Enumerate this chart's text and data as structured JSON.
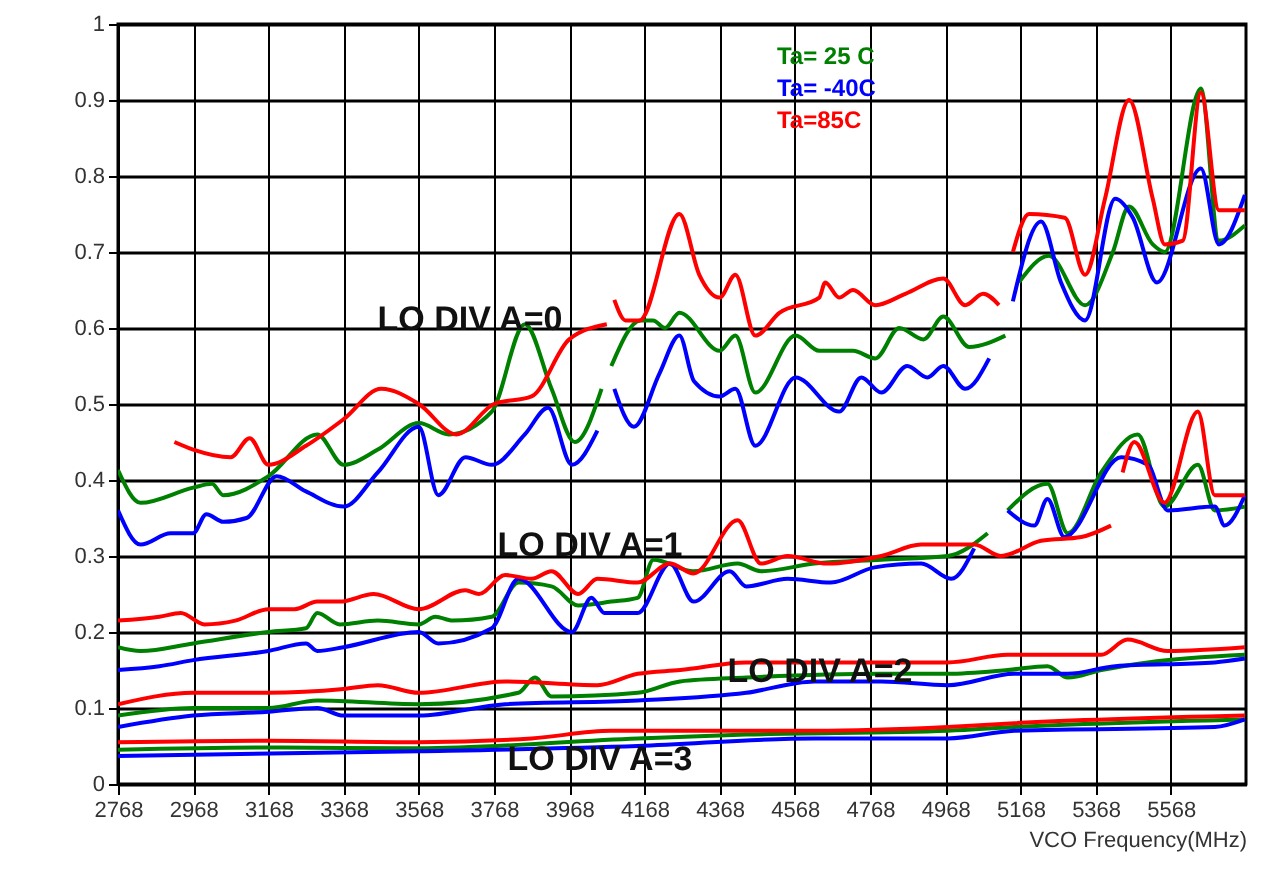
{
  "chart_data": {
    "type": "line",
    "xlabel": "VCO Frequency(MHz)",
    "xlim": [
      2768,
      5768
    ],
    "xticks": [
      2768,
      2968,
      3168,
      3368,
      3568,
      3768,
      3968,
      4168,
      4368,
      4568,
      4768,
      4968,
      5168,
      5368,
      5568
    ],
    "ylim": [
      0,
      1
    ],
    "yticks": [
      0,
      0.1,
      0.2,
      0.3,
      0.4,
      0.5,
      0.6,
      0.7,
      0.8,
      0.9,
      1
    ],
    "grid": true,
    "legend": "top",
    "marker": "none",
    "line_style": "solid",
    "annotations": [
      "LO DIV A=0",
      "LO DIV A=1",
      "LO DIV A=2",
      "LO DIV A=3"
    ],
    "series": [
      {
        "name": "Ta= 25 C",
        "color": "#008000",
        "x": [
          2768,
          2828,
          2968,
          3018,
          3048,
          3168,
          3298,
          3368,
          3459,
          3568,
          3648,
          3762,
          3850,
          3921,
          3983,
          4054,
          4070,
          4080,
          4158,
          4191,
          4223,
          4261,
          4368,
          4410,
          4463,
          4570,
          4633,
          4723,
          4782,
          4846,
          4910,
          4963,
          5032,
          5128,
          5140,
          5164,
          5244,
          5340,
          5414,
          5457,
          5520,
          5552,
          5648,
          5696,
          5765
        ],
        "values": [
          0.413,
          0.37,
          0.39,
          0.395,
          0.38,
          0.405,
          0.46,
          0.42,
          0.44,
          0.475,
          0.46,
          0.49,
          0.605,
          0.52,
          0.45,
          0.52,
          null,
          0.55,
          0.61,
          0.61,
          0.6,
          0.62,
          0.57,
          0.59,
          0.515,
          0.59,
          0.57,
          0.57,
          0.56,
          0.6,
          0.585,
          0.615,
          0.575,
          0.59,
          null,
          0.66,
          0.695,
          0.63,
          0.7,
          0.76,
          0.71,
          0.7,
          0.915,
          0.715,
          0.735
        ]
      },
      {
        "name": "Ta= -40C",
        "color": "#0000ff",
        "x": [
          2768,
          2828,
          2908,
          2968,
          3003,
          3048,
          3110,
          3190,
          3268,
          3368,
          3459,
          3568,
          3620,
          3692,
          3762,
          3850,
          3912,
          3975,
          4043,
          4070,
          4088,
          4140,
          4208,
          4261,
          4300,
          4368,
          4410,
          4463,
          4570,
          4686,
          4745,
          4798,
          4867,
          4921,
          4963,
          5021,
          5085,
          5130,
          5148,
          5223,
          5276,
          5340,
          5420,
          5467,
          5531,
          5648,
          5696,
          5765
        ],
        "values": [
          0.36,
          0.315,
          0.33,
          0.33,
          0.355,
          0.345,
          0.35,
          0.405,
          0.385,
          0.365,
          0.41,
          0.47,
          0.38,
          0.43,
          0.42,
          0.46,
          0.495,
          0.42,
          0.465,
          null,
          0.52,
          0.47,
          0.54,
          0.59,
          0.53,
          0.51,
          0.52,
          0.445,
          0.535,
          0.49,
          0.535,
          0.515,
          0.55,
          0.535,
          0.55,
          0.52,
          0.56,
          null,
          0.635,
          0.74,
          0.66,
          0.61,
          0.77,
          0.745,
          0.66,
          0.81,
          0.71,
          0.775
        ]
      },
      {
        "name": "Ta=85C",
        "color": "#ff0000",
        "x": [
          2918,
          2968,
          3068,
          3118,
          3168,
          3268,
          3368,
          3468,
          3568,
          3668,
          3768,
          3868,
          3968,
          4068,
          4078,
          4088,
          4118,
          4155,
          4261,
          4314,
          4368,
          4410,
          4463,
          4527,
          4633,
          4649,
          4686,
          4723,
          4782,
          4862,
          4963,
          5021,
          5069,
          5111,
          5130,
          5148,
          5191,
          5286,
          5340,
          5393,
          5457,
          5520,
          5552,
          5600,
          5648,
          5696,
          5765
        ],
        "values": [
          0.45,
          0.44,
          0.43,
          0.455,
          0.42,
          0.445,
          0.48,
          0.52,
          0.5,
          0.46,
          0.5,
          0.51,
          0.585,
          0.605,
          null,
          0.637,
          0.61,
          0.61,
          0.75,
          0.67,
          0.64,
          0.67,
          0.59,
          0.62,
          0.64,
          0.66,
          0.64,
          0.65,
          0.63,
          0.645,
          0.665,
          0.63,
          0.645,
          0.63,
          null,
          0.7,
          0.75,
          0.745,
          0.67,
          0.77,
          0.9,
          0.77,
          0.71,
          0.715,
          0.91,
          0.755,
          0.755
        ]
      },
      {
        "color": "#008000",
        "x": [
          2768,
          2828,
          2968,
          3168,
          3268,
          3298,
          3358,
          3459,
          3568,
          3612,
          3658,
          3762,
          3833,
          3921,
          3992,
          4080,
          4150,
          4192,
          4299,
          4416,
          4478,
          4620,
          4798,
          4975,
          5081,
          5120,
          5134,
          5240,
          5294,
          5383,
          5480,
          5551,
          5640,
          5685,
          5765
        ],
        "values": [
          0.18,
          0.175,
          0.185,
          0.2,
          0.205,
          0.225,
          0.21,
          0.215,
          0.21,
          0.22,
          0.215,
          0.22,
          0.265,
          0.26,
          0.235,
          0.24,
          0.245,
          0.295,
          0.28,
          0.29,
          0.28,
          0.29,
          0.295,
          0.3,
          0.33,
          null,
          0.36,
          0.395,
          0.33,
          0.41,
          0.46,
          0.365,
          0.42,
          0.36,
          0.365
        ]
      },
      {
        "color": "#0000ff",
        "x": [
          2768,
          2878,
          2968,
          3168,
          3268,
          3298,
          3368,
          3568,
          3620,
          3762,
          3833,
          3975,
          4027,
          4062,
          4150,
          4236,
          4299,
          4395,
          4439,
          4549,
          4664,
          4780,
          4904,
          4984,
          5045,
          5110,
          5134,
          5205,
          5240,
          5285,
          5436,
          5507,
          5560,
          5685,
          5711,
          5765
        ],
        "values": [
          0.15,
          0.155,
          0.163,
          0.175,
          0.185,
          0.175,
          0.18,
          0.2,
          0.185,
          0.205,
          0.27,
          0.2,
          0.245,
          0.225,
          0.225,
          0.29,
          0.24,
          0.28,
          0.26,
          0.27,
          0.265,
          0.285,
          0.29,
          0.27,
          0.31,
          null,
          0.36,
          0.34,
          0.375,
          0.325,
          0.43,
          0.42,
          0.36,
          0.365,
          0.34,
          0.38
        ]
      },
      {
        "color": "#ff0000",
        "x": [
          2768,
          2878,
          2935,
          2998,
          3080,
          3168,
          3238,
          3298,
          3358,
          3448,
          3568,
          3692,
          3728,
          3798,
          3868,
          3921,
          3992,
          4043,
          4150,
          4236,
          4299,
          4416,
          4478,
          4549,
          4655,
          4798,
          4904,
          5045,
          5116,
          5223,
          5330,
          5409,
          5420,
          5440,
          5471,
          5551,
          5640,
          5685,
          5765
        ],
        "values": [
          0.215,
          0.22,
          0.225,
          0.21,
          0.215,
          0.23,
          0.23,
          0.24,
          0.24,
          0.25,
          0.23,
          0.255,
          0.25,
          0.275,
          0.27,
          0.28,
          0.25,
          0.27,
          0.265,
          0.29,
          0.277,
          0.347,
          0.29,
          0.3,
          0.29,
          0.3,
          0.315,
          0.315,
          0.3,
          0.32,
          0.325,
          0.34,
          null,
          0.41,
          0.45,
          0.37,
          0.49,
          0.38,
          0.38
        ]
      },
      {
        "color": "#008000",
        "x": [
          2768,
          2968,
          3168,
          3298,
          3568,
          3833,
          3877,
          3921,
          4150,
          4263,
          4439,
          4798,
          4975,
          5134,
          5240,
          5294,
          5383,
          5507,
          5765
        ],
        "values": [
          0.09,
          0.1,
          0.1,
          0.11,
          0.105,
          0.12,
          0.14,
          0.115,
          0.12,
          0.135,
          0.14,
          0.145,
          0.145,
          0.15,
          0.155,
          0.14,
          0.15,
          0.16,
          0.17
        ]
      },
      {
        "color": "#0000ff",
        "x": [
          2768,
          2968,
          3168,
          3298,
          3368,
          3568,
          3798,
          4150,
          4439,
          4620,
          4798,
          4975,
          5152,
          5294,
          5420,
          5685,
          5765
        ],
        "values": [
          0.075,
          0.09,
          0.095,
          0.1,
          0.09,
          0.09,
          0.105,
          0.11,
          0.12,
          0.135,
          0.135,
          0.13,
          0.145,
          0.145,
          0.155,
          0.16,
          0.165
        ]
      },
      {
        "color": "#ff0000",
        "x": [
          2768,
          2968,
          3168,
          3368,
          3459,
          3568,
          3798,
          4043,
          4150,
          4263,
          4439,
          4620,
          4975,
          5134,
          5223,
          5312,
          5383,
          5453,
          5560,
          5765
        ],
        "values": [
          0.105,
          0.12,
          0.12,
          0.125,
          0.13,
          0.12,
          0.135,
          0.13,
          0.145,
          0.15,
          0.16,
          0.16,
          0.16,
          0.17,
          0.17,
          0.17,
          0.17,
          0.19,
          0.175,
          0.18
        ]
      },
      {
        "color": "#008000",
        "x": [
          2768,
          3168,
          3568,
          4150,
          4439,
          4975,
          5152,
          5765
        ],
        "values": [
          0.045,
          0.048,
          0.047,
          0.06,
          0.065,
          0.07,
          0.075,
          0.085
        ]
      },
      {
        "color": "#0000ff",
        "x": [
          2768,
          3568,
          4150,
          4620,
          4975,
          5152,
          5685,
          5765
        ],
        "values": [
          0.037,
          0.043,
          0.05,
          0.06,
          0.06,
          0.07,
          0.075,
          0.085
        ]
      },
      {
        "color": "#ff0000",
        "x": [
          2768,
          3168,
          3568,
          3868,
          4080,
          4620,
          4975,
          5152,
          5765
        ],
        "values": [
          0.055,
          0.057,
          0.055,
          0.06,
          0.07,
          0.07,
          0.075,
          0.08,
          0.09
        ]
      }
    ]
  }
}
